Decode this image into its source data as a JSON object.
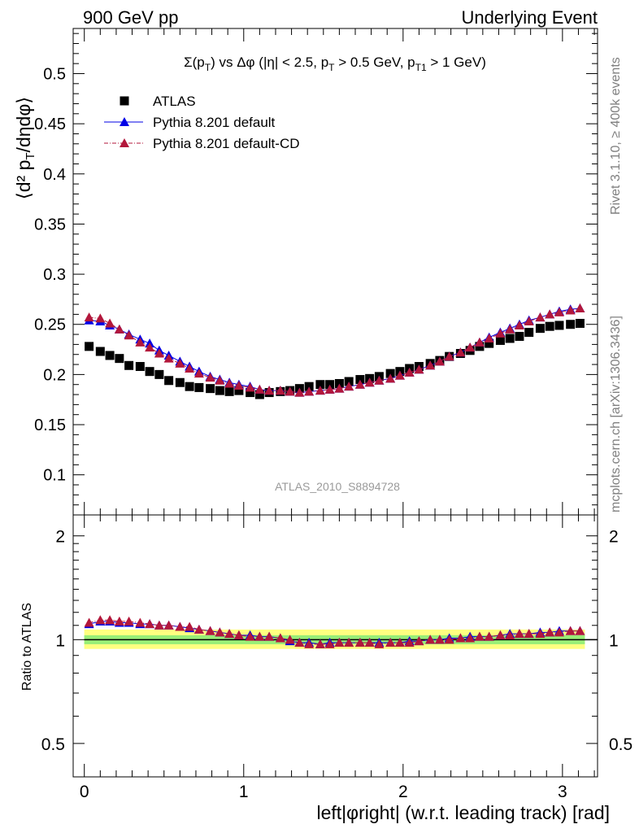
{
  "header": {
    "left": "900 GeV pp",
    "right": "Underlying Event"
  },
  "side_labels": {
    "rivet": "Rivet 3.1.10, ≥ 400k events",
    "mcplots": "mcplots.cern.ch [arXiv:1306.3436]"
  },
  "watermark": "ATLAS_2010_S8894728",
  "chart_data": [
    {
      "type": "scatter",
      "title": "Σ(p_T) vs Δφ (|η| < 2.5, p_T > 0.5 GeV, p_T1 > 1 GeV)",
      "xlabel": "left|φright| (w.r.t. leading track) [rad]",
      "ylabel": "⟨d² p_T/dηdφ⟩",
      "xlim": [
        -0.07,
        3.22
      ],
      "ylim": [
        0.06,
        0.545
      ],
      "xticks": [
        "0",
        "1",
        "2",
        "3"
      ],
      "yticks": [
        "0.1",
        "0.15",
        "0.2",
        "0.25",
        "0.3",
        "0.35",
        "0.4",
        "0.45",
        "0.5"
      ],
      "legend_position": "top-left",
      "x": [
        0.03,
        0.1,
        0.16,
        0.22,
        0.28,
        0.35,
        0.41,
        0.47,
        0.53,
        0.6,
        0.66,
        0.72,
        0.79,
        0.85,
        0.91,
        0.97,
        1.04,
        1.1,
        1.16,
        1.23,
        1.29,
        1.35,
        1.41,
        1.48,
        1.54,
        1.6,
        1.66,
        1.73,
        1.79,
        1.85,
        1.92,
        1.98,
        2.04,
        2.1,
        2.17,
        2.23,
        2.29,
        2.36,
        2.42,
        2.48,
        2.54,
        2.61,
        2.67,
        2.73,
        2.79,
        2.86,
        2.92,
        2.98,
        3.05,
        3.11
      ],
      "series": [
        {
          "name": "ATLAS",
          "color": "#000000",
          "marker": "square",
          "values": [
            0.228,
            0.223,
            0.219,
            0.216,
            0.209,
            0.208,
            0.203,
            0.2,
            0.194,
            0.192,
            0.188,
            0.187,
            0.186,
            0.184,
            0.183,
            0.184,
            0.182,
            0.18,
            0.182,
            0.183,
            0.184,
            0.186,
            0.188,
            0.19,
            0.19,
            0.191,
            0.193,
            0.195,
            0.196,
            0.198,
            0.201,
            0.203,
            0.206,
            0.208,
            0.211,
            0.214,
            0.218,
            0.221,
            0.224,
            0.228,
            0.231,
            0.234,
            0.236,
            0.238,
            0.242,
            0.246,
            0.248,
            0.249,
            0.25,
            0.251
          ]
        },
        {
          "name": "Pythia 8.201 default",
          "color": "#0000e6",
          "marker": "triangle",
          "values": [
            0.254,
            0.253,
            0.249,
            0.245,
            0.24,
            0.235,
            0.231,
            0.224,
            0.219,
            0.213,
            0.208,
            0.203,
            0.198,
            0.195,
            0.192,
            0.19,
            0.188,
            0.185,
            0.184,
            0.184,
            0.183,
            0.182,
            0.183,
            0.184,
            0.185,
            0.186,
            0.188,
            0.19,
            0.192,
            0.194,
            0.196,
            0.199,
            0.202,
            0.205,
            0.209,
            0.213,
            0.218,
            0.222,
            0.227,
            0.232,
            0.237,
            0.242,
            0.246,
            0.25,
            0.254,
            0.257,
            0.26,
            0.263,
            0.265,
            0.266
          ]
        },
        {
          "name": "Pythia 8.201 default-CD",
          "color": "#b3173b",
          "marker": "triangle",
          "dashed": true,
          "values": [
            0.257,
            0.256,
            0.251,
            0.245,
            0.239,
            0.232,
            0.227,
            0.221,
            0.216,
            0.211,
            0.206,
            0.201,
            0.197,
            0.194,
            0.191,
            0.189,
            0.187,
            0.185,
            0.184,
            0.184,
            0.183,
            0.182,
            0.183,
            0.184,
            0.185,
            0.186,
            0.188,
            0.19,
            0.192,
            0.194,
            0.196,
            0.199,
            0.202,
            0.205,
            0.209,
            0.213,
            0.218,
            0.222,
            0.227,
            0.232,
            0.236,
            0.241,
            0.245,
            0.249,
            0.253,
            0.257,
            0.26,
            0.262,
            0.264,
            0.266
          ]
        }
      ]
    },
    {
      "type": "scatter",
      "ylabel": "Ratio to ATLAS",
      "xlabel": "left|φright| (w.r.t. leading track) [rad]",
      "xlim": [
        -0.07,
        3.22
      ],
      "ylim": [
        0.4,
        2.3
      ],
      "log_y": true,
      "yticks": [
        "0.5",
        "1",
        "2"
      ],
      "xticks": [
        "0",
        "1",
        "2",
        "3"
      ],
      "reference": 1,
      "band_inner": [
        0.97,
        1.03
      ],
      "band_outer": [
        0.94,
        1.07
      ],
      "x": [
        0.03,
        0.1,
        0.16,
        0.22,
        0.28,
        0.35,
        0.41,
        0.47,
        0.53,
        0.6,
        0.66,
        0.72,
        0.79,
        0.85,
        0.91,
        0.97,
        1.04,
        1.1,
        1.16,
        1.23,
        1.29,
        1.35,
        1.41,
        1.48,
        1.54,
        1.6,
        1.66,
        1.73,
        1.79,
        1.85,
        1.92,
        1.98,
        2.04,
        2.1,
        2.17,
        2.23,
        2.29,
        2.36,
        2.42,
        2.48,
        2.54,
        2.61,
        2.67,
        2.73,
        2.79,
        2.86,
        2.92,
        2.98,
        3.05,
        3.11
      ],
      "series": [
        {
          "name": "Pythia 8.201 default",
          "color": "#0000e6",
          "marker": "triangle",
          "values": [
            1.11,
            1.13,
            1.13,
            1.12,
            1.12,
            1.11,
            1.11,
            1.1,
            1.1,
            1.09,
            1.08,
            1.07,
            1.06,
            1.05,
            1.04,
            1.03,
            1.03,
            1.02,
            1.02,
            1.01,
            0.99,
            0.98,
            0.98,
            0.97,
            0.98,
            0.98,
            0.98,
            0.98,
            0.98,
            0.98,
            0.98,
            0.98,
            0.99,
            0.99,
            1.0,
            1.0,
            1.01,
            1.01,
            1.02,
            1.02,
            1.02,
            1.03,
            1.04,
            1.04,
            1.04,
            1.05,
            1.05,
            1.06,
            1.06,
            1.06
          ]
        },
        {
          "name": "Pythia 8.201 default-CD",
          "color": "#b3173b",
          "marker": "triangle",
          "dashed": true,
          "values": [
            1.12,
            1.14,
            1.14,
            1.13,
            1.13,
            1.12,
            1.11,
            1.1,
            1.1,
            1.09,
            1.09,
            1.07,
            1.06,
            1.05,
            1.04,
            1.03,
            1.02,
            1.02,
            1.02,
            1.01,
            1.0,
            0.98,
            0.97,
            0.97,
            0.97,
            0.98,
            0.98,
            0.98,
            0.98,
            0.97,
            0.98,
            0.98,
            0.98,
            0.99,
            1.0,
            1.0,
            1.0,
            1.01,
            1.01,
            1.02,
            1.02,
            1.03,
            1.03,
            1.04,
            1.04,
            1.04,
            1.05,
            1.05,
            1.06,
            1.06
          ]
        }
      ]
    }
  ]
}
